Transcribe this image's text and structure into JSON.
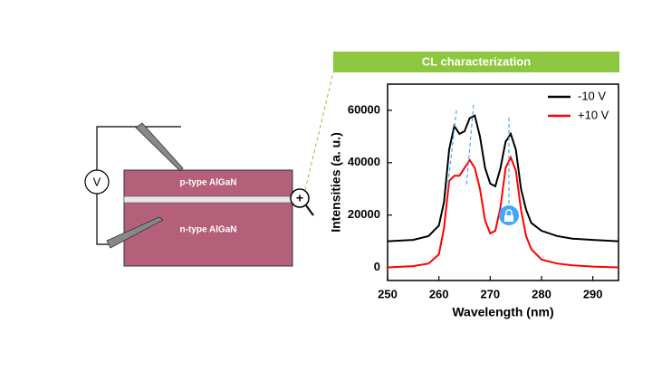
{
  "diagram": {
    "banner": "CL characterization",
    "voltmeter": "V",
    "top_layer": "p-type AlGaN",
    "bottom_layer": "n-type AlGaN"
  },
  "chart_data": {
    "type": "line",
    "xlabel": "Wavelength (nm)",
    "ylabel": "Intensities (a. u.)",
    "x": [
      250,
      255,
      258,
      260,
      261,
      262,
      263,
      264,
      265,
      266,
      267,
      268,
      269,
      270,
      271,
      272,
      273,
      274,
      275,
      276,
      277,
      278,
      280,
      283,
      286,
      290,
      295
    ],
    "series": [
      {
        "name": "-10 V",
        "color": "#000000",
        "values": [
          10000,
          10500,
          12000,
          16000,
          25000,
          45000,
          54000,
          51000,
          52000,
          57000,
          58000,
          50000,
          38000,
          32000,
          31000,
          38000,
          48000,
          51000,
          45000,
          30000,
          22000,
          17000,
          14000,
          12000,
          11000,
          10500,
          10000
        ]
      },
      {
        "name": "+10 V",
        "color": "#ff0000",
        "values": [
          0,
          500,
          1500,
          5000,
          15000,
          33000,
          35000,
          35000,
          38000,
          41000,
          38000,
          30000,
          18000,
          13000,
          14000,
          23000,
          38000,
          42000,
          37000,
          22000,
          12000,
          7000,
          3000,
          1500,
          800,
          300,
          0
        ]
      }
    ],
    "xlim": [
      250,
      295
    ],
    "xticks": [
      250,
      260,
      270,
      280,
      290
    ],
    "ylim": [
      -5000,
      70000
    ],
    "yticks": [
      0,
      20000,
      40000,
      60000
    ],
    "legend": "upper-right"
  }
}
